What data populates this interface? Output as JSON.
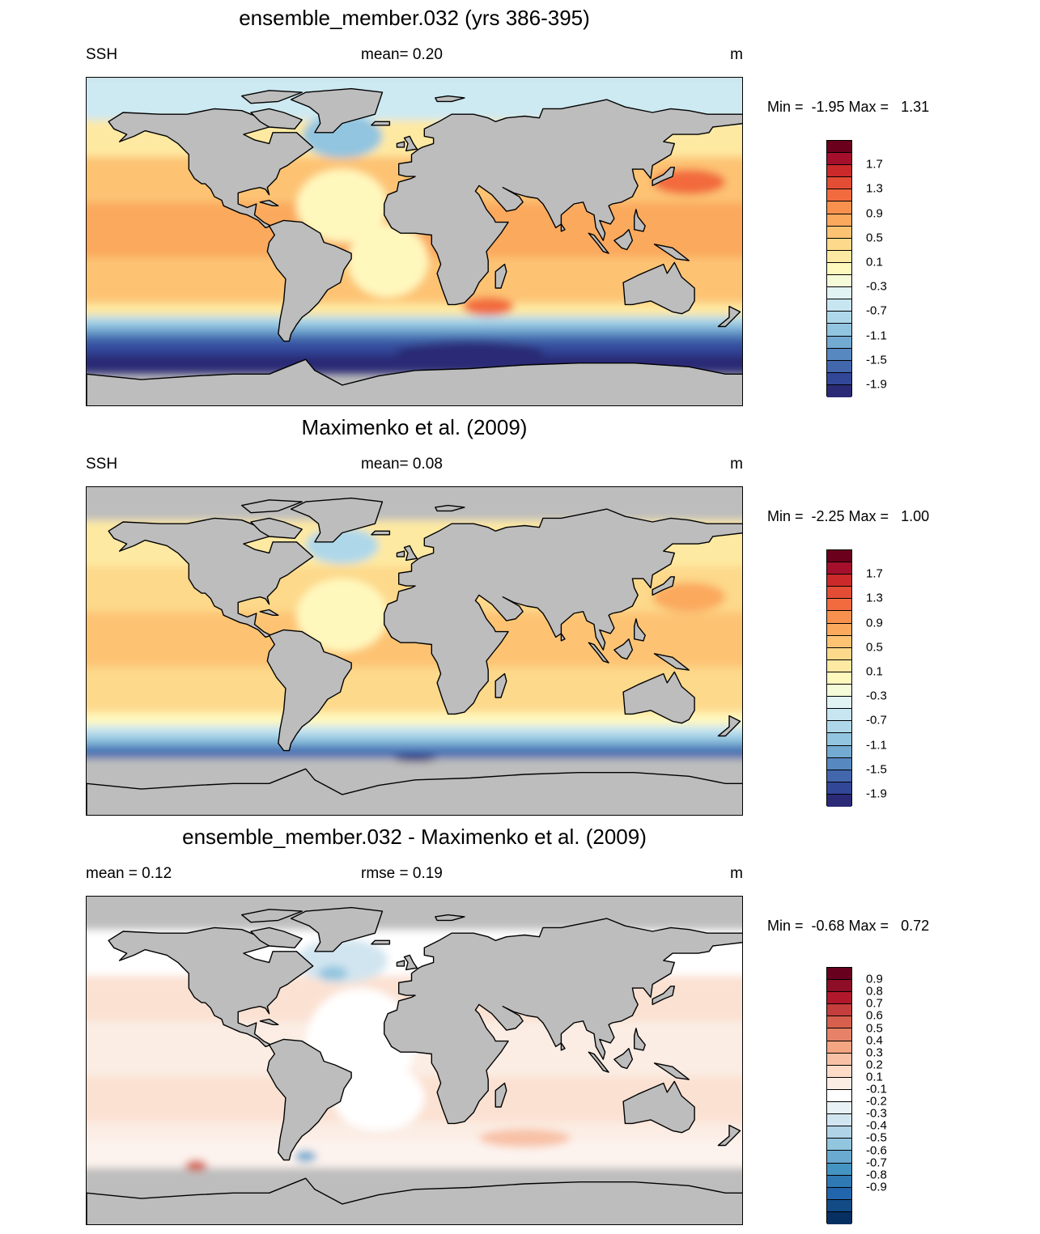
{
  "panels": [
    {
      "title": "ensemble_member.032 (yrs 386-395)",
      "left_label": "SSH",
      "center_label": "mean=   0.20",
      "right_label": "m",
      "minmax": "Min =  -1.95 Max =   1.31",
      "colorbar": {
        "tick_labels": [
          "1.7",
          "1.3",
          "0.9",
          "0.5",
          "0.1",
          "-0.3",
          "-0.7",
          "-1.1",
          "-1.5",
          "-1.9"
        ],
        "colors": [
          "#6a001c",
          "#a50f2b",
          "#cc2a2a",
          "#e34d35",
          "#f26b3e",
          "#f7914d",
          "#fba95d",
          "#fdc373",
          "#fdd98b",
          "#fee9a2",
          "#fff8bd",
          "#f5fad8",
          "#e2f3f3",
          "#c7e6f1",
          "#aed8ea",
          "#92c5e0",
          "#73aad2",
          "#5888c0",
          "#4367ad",
          "#334799",
          "#2b2a76"
        ]
      },
      "bands": [
        {
          "lat": [
            90,
            65
          ],
          "color": "#cde9f2"
        },
        {
          "lat": [
            65,
            45
          ],
          "color": "#fee9a2"
        },
        {
          "lat": [
            45,
            20
          ],
          "color": "#fdc373"
        },
        {
          "lat": [
            20,
            -10
          ],
          "color": "#fba95d"
        },
        {
          "lat": [
            -10,
            -35
          ],
          "color": "#fdc373"
        },
        {
          "lat": [
            -35,
            -42
          ],
          "color": "#fee9a2"
        },
        {
          "lat": [
            -42,
            -47
          ],
          "color": "#aed8ea"
        },
        {
          "lat": [
            -47,
            -52
          ],
          "color": "#73aad2"
        },
        {
          "lat": [
            -52,
            -57
          ],
          "color": "#4367ad"
        },
        {
          "lat": [
            -57,
            -63
          ],
          "color": "#334799"
        },
        {
          "lat": [
            -63,
            -70
          ],
          "color": "#2b2a76"
        }
      ],
      "blobs": [
        {
          "lon": -40,
          "lat": 58,
          "rx": 22,
          "ry": 12,
          "color": "#92c5e0"
        },
        {
          "lon": 150,
          "lat": 33,
          "rx": 20,
          "ry": 7,
          "color": "#f26b3e"
        },
        {
          "lon": -40,
          "lat": 20,
          "rx": 25,
          "ry": 20,
          "color": "#fff8bd"
        },
        {
          "lon": -15,
          "lat": -10,
          "rx": 22,
          "ry": 20,
          "color": "#fff8bd"
        },
        {
          "lon": 40,
          "lat": -35,
          "rx": 14,
          "ry": 5,
          "color": "#f26b3e"
        },
        {
          "lon": 30,
          "lat": -60,
          "rx": 40,
          "ry": 6,
          "color": "#2b2a76"
        }
      ]
    },
    {
      "title": "Maximenko et al. (2009)",
      "left_label": "SSH",
      "center_label": "mean=   0.08",
      "right_label": "m",
      "minmax": "Min =  -2.25 Max =   1.00",
      "colorbar": {
        "tick_labels": [
          "1.7",
          "1.3",
          "0.9",
          "0.5",
          "0.1",
          "-0.3",
          "-0.7",
          "-1.1",
          "-1.5",
          "-1.9"
        ],
        "colors": [
          "#6a001c",
          "#a50f2b",
          "#cc2a2a",
          "#e34d35",
          "#f26b3e",
          "#f7914d",
          "#fba95d",
          "#fdc373",
          "#fdd98b",
          "#fee9a2",
          "#fff8bd",
          "#f5fad8",
          "#e2f3f3",
          "#c7e6f1",
          "#aed8ea",
          "#92c5e0",
          "#73aad2",
          "#5888c0",
          "#4367ad",
          "#334799",
          "#2b2a76"
        ]
      },
      "bands": [
        {
          "lat": [
            90,
            70
          ],
          "color": "#bdbdbd"
        },
        {
          "lat": [
            70,
            45
          ],
          "color": "#fee9a2"
        },
        {
          "lat": [
            45,
            20
          ],
          "color": "#fdd98b"
        },
        {
          "lat": [
            20,
            -10
          ],
          "color": "#fdc373"
        },
        {
          "lat": [
            -10,
            -35
          ],
          "color": "#fdd98b"
        },
        {
          "lat": [
            -35,
            -42
          ],
          "color": "#fff8bd"
        },
        {
          "lat": [
            -42,
            -47
          ],
          "color": "#c7e6f1"
        },
        {
          "lat": [
            -47,
            -52
          ],
          "color": "#92c5e0"
        },
        {
          "lat": [
            -52,
            -56
          ],
          "color": "#5888c0"
        },
        {
          "lat": [
            -56,
            -60
          ],
          "color": "#4367ad"
        },
        {
          "lat": [
            -60,
            -90
          ],
          "color": "#bdbdbd"
        }
      ],
      "blobs": [
        {
          "lon": -40,
          "lat": 58,
          "rx": 20,
          "ry": 10,
          "color": "#aed8ea"
        },
        {
          "lon": 150,
          "lat": 30,
          "rx": 20,
          "ry": 8,
          "color": "#fba95d"
        },
        {
          "lon": -40,
          "lat": 20,
          "rx": 25,
          "ry": 20,
          "color": "#fff8bd"
        },
        {
          "lon": 0,
          "lat": -58,
          "rx": 12,
          "ry": 2,
          "color": "#2b2a76"
        }
      ]
    },
    {
      "title": "ensemble_member.032 - Maximenko et al. (2009)",
      "left_label": "mean =   0.12",
      "center_label": "rmse =   0.19",
      "right_label": "m",
      "minmax": "Min =  -0.68 Max =   0.72",
      "colorbar": {
        "tick_labels": [
          "0.9",
          "0.8",
          "0.7",
          "0.6",
          "0.5",
          "0.4",
          "0.3",
          "0.2",
          "0.1",
          "-0.1",
          "-0.2",
          "-0.3",
          "-0.4",
          "-0.5",
          "-0.6",
          "-0.7",
          "-0.8",
          "-0.9"
        ],
        "colors": [
          "#67001f",
          "#8d0e26",
          "#b2182b",
          "#c53d3c",
          "#d6604d",
          "#e58267",
          "#f4a582",
          "#f8c1a6",
          "#fddbc7",
          "#fbede4",
          "#ffffff",
          "#e8f1f6",
          "#d1e5f0",
          "#b0d3e7",
          "#92c5de",
          "#6aa9d0",
          "#4393c3",
          "#2f79b5",
          "#2166ac",
          "#134b87",
          "#053061"
        ]
      },
      "bands": [
        {
          "lat": [
            90,
            70
          ],
          "color": "#bdbdbd"
        },
        {
          "lat": [
            70,
            45
          ],
          "color": "#ffffff"
        },
        {
          "lat": [
            45,
            20
          ],
          "color": "#fbe1d2"
        },
        {
          "lat": [
            20,
            -10
          ],
          "color": "#fbede4"
        },
        {
          "lat": [
            -10,
            -35
          ],
          "color": "#fbe1d2"
        },
        {
          "lat": [
            -35,
            -45
          ],
          "color": "#fbede4"
        },
        {
          "lat": [
            -45,
            -60
          ],
          "color": "#fdf3ee"
        },
        {
          "lat": [
            -60,
            -90
          ],
          "color": "#bdbdbd"
        }
      ],
      "blobs": [
        {
          "lon": -40,
          "lat": 55,
          "rx": 25,
          "ry": 12,
          "color": "#d1e5f0"
        },
        {
          "lon": -45,
          "lat": 48,
          "rx": 8,
          "ry": 4,
          "color": "#92c5de"
        },
        {
          "lon": -30,
          "lat": 10,
          "rx": 30,
          "ry": 30,
          "color": "#ffffff"
        },
        {
          "lon": -20,
          "lat": -20,
          "rx": 25,
          "ry": 18,
          "color": "#ffffff"
        },
        {
          "lon": -120,
          "lat": -57,
          "rx": 6,
          "ry": 3,
          "color": "#d6604d"
        },
        {
          "lon": 60,
          "lat": -42,
          "rx": 25,
          "ry": 5,
          "color": "#f8c1a6"
        },
        {
          "lon": -60,
          "lat": -52,
          "rx": 6,
          "ry": 3,
          "color": "#6aa9d0"
        }
      ]
    }
  ]
}
